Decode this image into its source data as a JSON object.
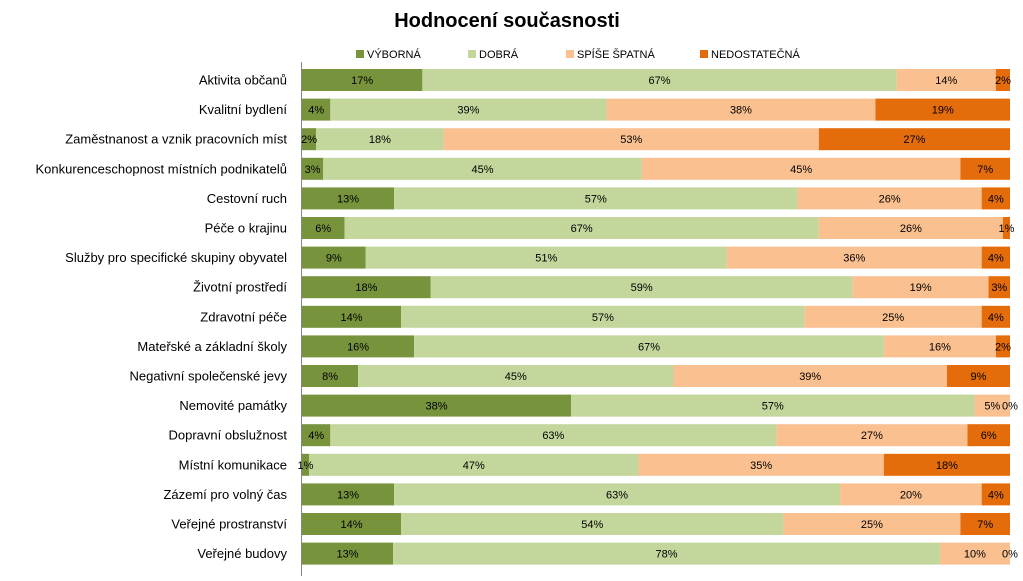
{
  "chart_data": {
    "type": "bar",
    "orientation": "horizontal",
    "stacked": true,
    "title": "Hodnocení současnosti",
    "xlabel": "",
    "ylabel": "",
    "xlim": [
      0,
      100
    ],
    "legend_position": "top",
    "grid": false,
    "categories": [
      "Aktivita občanů",
      "Kvalitní bydlení",
      "Zaměstnanost a vznik pracovních míst",
      "Konkurenceschopnost místních podnikatelů",
      "Cestovní ruch",
      "Péče o krajinu",
      "Služby pro specifické skupiny obyvatel",
      "Životní prostředí",
      "Zdravotní péče",
      "Mateřské a základní školy",
      "Negativní společenské jevy",
      "Nemovité památky",
      "Dopravní obslužnost",
      "Místní komunikace",
      "Zázemí pro volný čas",
      "Veřejné prostranství",
      "Veřejné budovy"
    ],
    "series": [
      {
        "name": "VÝBORNÁ",
        "color": "#77933c",
        "values": [
          17,
          4,
          2,
          3,
          13,
          6,
          9,
          18,
          14,
          16,
          8,
          38,
          4,
          1,
          13,
          14,
          13
        ]
      },
      {
        "name": "DOBRÁ",
        "color": "#c3d69b",
        "values": [
          67,
          39,
          18,
          45,
          57,
          67,
          51,
          59,
          57,
          67,
          45,
          57,
          63,
          47,
          63,
          54,
          78
        ]
      },
      {
        "name": "SPÍŠE ŠPATNÁ",
        "color": "#fac090",
        "values": [
          14,
          38,
          53,
          45,
          26,
          26,
          36,
          19,
          25,
          16,
          39,
          5,
          27,
          35,
          20,
          25,
          10
        ]
      },
      {
        "name": "NEDOSTATEČNÁ",
        "color": "#e46c0a",
        "values": [
          2,
          19,
          27,
          7,
          4,
          1,
          4,
          3,
          4,
          2,
          9,
          0,
          6,
          18,
          4,
          7,
          0
        ]
      }
    ]
  }
}
